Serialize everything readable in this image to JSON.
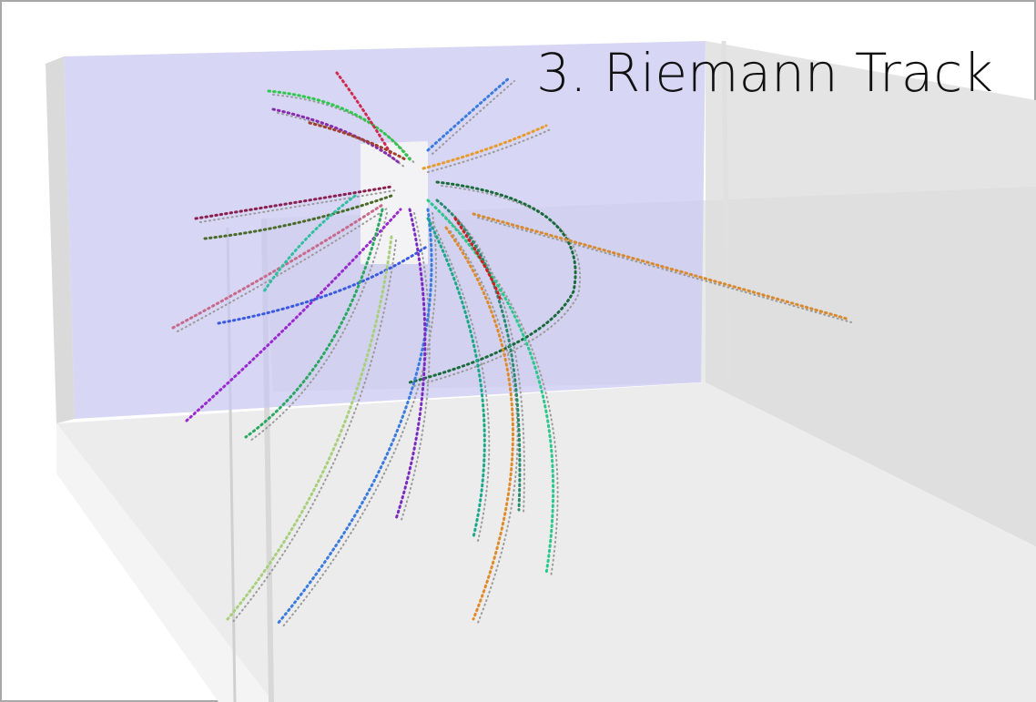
{
  "title": "3. Riemann Track"
}
